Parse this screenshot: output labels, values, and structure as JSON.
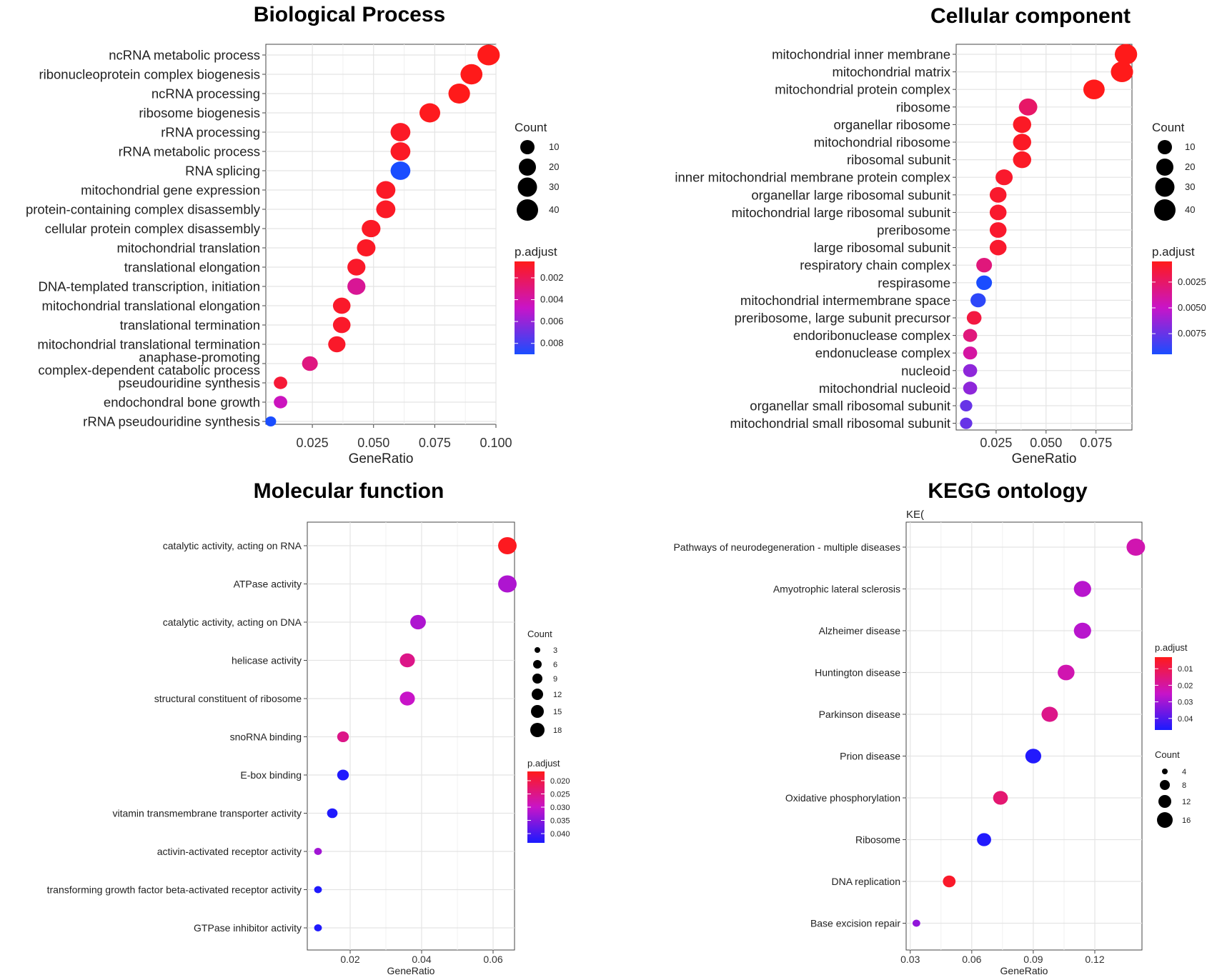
{
  "chart_data": [
    {
      "type": "scatter",
      "title": "Biological Process",
      "xlabel": "GeneRatio",
      "xlim": [
        0.006,
        0.1
      ],
      "xticks": [
        0.025,
        0.05,
        0.075,
        0.1
      ],
      "xtick_labels": [
        "0.025",
        "0.050",
        "0.075",
        "0.100"
      ],
      "grid": true,
      "color_scale": {
        "low": "#ff1a1a",
        "high": "#1a4dff",
        "min": 0.0005,
        "max": 0.009
      },
      "count_legend": {
        "title": "Count",
        "values": [
          10,
          20,
          30,
          40
        ]
      },
      "padj_legend": {
        "title": "p.adjust",
        "ticks": [
          0.002,
          0.004,
          0.006,
          0.008
        ],
        "tick_labels": [
          "0.002",
          "0.004",
          "0.006",
          "0.008"
        ]
      },
      "categories": [
        "ncRNA metabolic process",
        "ribonucleoprotein complex biogenesis",
        "ncRNA processing",
        "ribosome biogenesis",
        "rRNA processing",
        "rRNA metabolic process",
        "RNA splicing",
        "mitochondrial gene expression",
        "protein-containing complex disassembly",
        "cellular protein complex disassembly",
        "mitochondrial translation",
        "translational elongation",
        "DNA-templated transcription, initiation",
        "mitochondrial translational elongation",
        "translational termination",
        "mitochondrial translational termination",
        "anaphase-promoting\ncomplex-dependent catabolic process",
        "pseudouridine synthesis",
        "endochondral bone growth",
        "rRNA pseudouridine synthesis"
      ],
      "gene_ratio": [
        0.097,
        0.09,
        0.085,
        0.073,
        0.061,
        0.061,
        0.061,
        0.055,
        0.055,
        0.049,
        0.047,
        0.043,
        0.043,
        0.037,
        0.037,
        0.035,
        0.024,
        0.012,
        0.012,
        0.008
      ],
      "count": [
        41,
        38,
        36,
        31,
        26,
        26,
        26,
        23,
        23,
        21,
        20,
        18,
        18,
        16,
        16,
        15,
        10,
        5,
        5,
        3
      ],
      "p_adjust": [
        0.0005,
        0.0005,
        0.0005,
        0.0006,
        0.0008,
        0.0008,
        0.009,
        0.0008,
        0.0008,
        0.0008,
        0.0008,
        0.0009,
        0.0035,
        0.0009,
        0.0009,
        0.0009,
        0.003,
        0.0012,
        0.0045,
        0.009
      ]
    },
    {
      "type": "scatter",
      "title": "Cellular component",
      "xlabel": "GeneRatio",
      "xlim": [
        0.005,
        0.093
      ],
      "xticks": [
        0.025,
        0.05,
        0.075
      ],
      "xtick_labels": [
        "0.025",
        "0.050",
        "0.075"
      ],
      "grid": true,
      "color_scale": {
        "low": "#ff1a1a",
        "high": "#1a4dff",
        "min": 0.0005,
        "max": 0.0095
      },
      "count_legend": {
        "title": "Count",
        "values": [
          10,
          20,
          30,
          40
        ]
      },
      "padj_legend": {
        "title": "p.adjust",
        "ticks": [
          0.0025,
          0.005,
          0.0075
        ],
        "tick_labels": [
          "0.0025",
          "0.0050",
          "0.0075"
        ]
      },
      "categories": [
        "mitochondrial inner membrane",
        "mitochondrial matrix",
        "mitochondrial protein complex",
        "ribosome",
        "organellar ribosome",
        "mitochondrial ribosome",
        "ribosomal subunit",
        "inner mitochondrial membrane protein complex",
        "organellar large ribosomal subunit",
        "mitochondrial large ribosomal subunit",
        "preribosome",
        "large ribosomal subunit",
        "respiratory chain complex",
        "respirasome",
        "mitochondrial intermembrane space",
        "preribosome, large subunit precursor",
        "endoribonuclease complex",
        "endonuclease complex",
        "nucleoid",
        "mitochondrial nucleoid",
        "organellar small ribosomal subunit",
        "mitochondrial small ribosomal subunit"
      ],
      "gene_ratio": [
        0.09,
        0.088,
        0.074,
        0.041,
        0.038,
        0.038,
        0.038,
        0.029,
        0.026,
        0.026,
        0.026,
        0.026,
        0.019,
        0.019,
        0.016,
        0.014,
        0.012,
        0.012,
        0.012,
        0.012,
        0.01,
        0.01
      ],
      "count": [
        40,
        39,
        33,
        18,
        17,
        17,
        17,
        13,
        12,
        12,
        12,
        12,
        9,
        9,
        8,
        7,
        6,
        6,
        6,
        6,
        5,
        5
      ],
      "p_adjust": [
        0.0005,
        0.0005,
        0.0005,
        0.0025,
        0.0008,
        0.0008,
        0.0008,
        0.001,
        0.001,
        0.001,
        0.001,
        0.001,
        0.003,
        0.0095,
        0.009,
        0.0015,
        0.003,
        0.004,
        0.0065,
        0.0065,
        0.0075,
        0.0075
      ]
    },
    {
      "type": "scatter",
      "title": "Molecular function",
      "xlabel": "GeneRatio",
      "xlim": [
        0.008,
        0.066
      ],
      "xticks": [
        0.02,
        0.04,
        0.06
      ],
      "xtick_labels": [
        "0.02",
        "0.04",
        "0.06"
      ],
      "grid": true,
      "color_scale": {
        "low": "#ff1a1a",
        "high": "#1a1aff",
        "min": 0.0165,
        "max": 0.0435
      },
      "count_legend": {
        "title": "Count",
        "values": [
          3,
          6,
          9,
          12,
          15,
          18
        ]
      },
      "padj_legend": {
        "title": "p.adjust",
        "ticks": [
          0.02,
          0.025,
          0.03,
          0.035,
          0.04
        ],
        "tick_labels": [
          "0.020",
          "0.025",
          "0.030",
          "0.035",
          "0.040"
        ]
      },
      "categories": [
        "catalytic activity, acting on RNA",
        "ATPase activity",
        "catalytic activity, acting on DNA",
        "helicase activity",
        "structural constituent of ribosome",
        "snoRNA binding",
        "E-box binding",
        "vitamin transmembrane transporter activity",
        "activin-activated receptor activity",
        "transforming growth factor beta-activated receptor activity",
        "GTPase inhibitor activity"
      ],
      "gene_ratio": [
        0.064,
        0.064,
        0.039,
        0.036,
        0.036,
        0.018,
        0.018,
        0.015,
        0.011,
        0.011,
        0.011
      ],
      "count": [
        18,
        18,
        11,
        10,
        10,
        5,
        5,
        4,
        3,
        3,
        3
      ],
      "p_adjust": [
        0.017,
        0.032,
        0.032,
        0.025,
        0.03,
        0.025,
        0.043,
        0.043,
        0.033,
        0.043,
        0.043
      ]
    },
    {
      "type": "scatter",
      "title": "KEGG ontology",
      "subtitle": "KE(",
      "xlabel": "GeneRatio",
      "xlim": [
        0.028,
        0.143
      ],
      "xticks": [
        0.03,
        0.06,
        0.09,
        0.12
      ],
      "xtick_labels": [
        "0.03",
        "0.06",
        "0.09",
        "0.12"
      ],
      "grid": true,
      "color_scale": {
        "low": "#ff1a1a",
        "high": "#1a1aff",
        "min": 0.003,
        "max": 0.047
      },
      "count_legend": {
        "title": "Count",
        "values": [
          4,
          8,
          12,
          16
        ]
      },
      "padj_legend": {
        "title": "p.adjust",
        "ticks": [
          0.01,
          0.02,
          0.03,
          0.04
        ],
        "tick_labels": [
          "0.01",
          "0.02",
          "0.03",
          "0.04"
        ]
      },
      "categories": [
        "Pathways of neurodegeneration - multiple diseases",
        "Amyotrophic lateral sclerosis",
        "Alzheimer disease",
        "Huntington disease",
        "Parkinson disease",
        "Prion disease",
        "Oxidative phosphorylation",
        "Ribosome",
        "DNA replication",
        "Base excision repair"
      ],
      "gene_ratio": [
        0.14,
        0.114,
        0.114,
        0.106,
        0.098,
        0.09,
        0.074,
        0.066,
        0.049,
        0.033
      ],
      "count": [
        17,
        14,
        14,
        13,
        12,
        11,
        9,
        8,
        6,
        3
      ],
      "p_adjust": [
        0.022,
        0.027,
        0.027,
        0.022,
        0.017,
        0.046,
        0.014,
        0.046,
        0.005,
        0.032
      ]
    }
  ]
}
